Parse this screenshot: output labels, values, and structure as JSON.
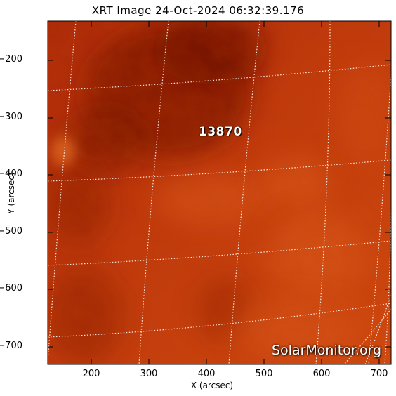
{
  "title": "XRT Image 24-Oct-2024 06:32:39.176",
  "x_axis": {
    "label": "X (arcsec)",
    "ticks": [
      "200",
      "300",
      "400",
      "500",
      "600",
      "700"
    ]
  },
  "y_axis": {
    "label": "Y (arcsec)",
    "ticks": [
      "−200",
      "−300",
      "−400",
      "−500",
      "−600",
      "−700"
    ]
  },
  "active_region": "13870",
  "watermark": "SolarMonitor.org",
  "colors": {
    "base": "#c4380c",
    "dark": "#7a1200",
    "bright": "#e8641e",
    "grid": "#ffffff"
  }
}
